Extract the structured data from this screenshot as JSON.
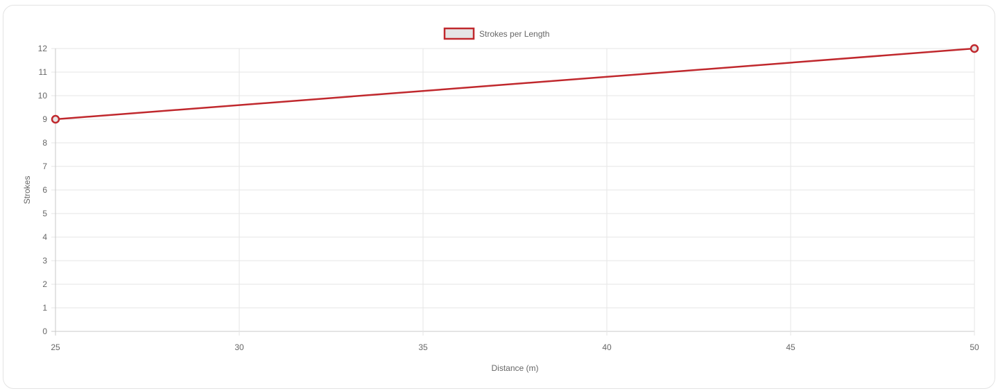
{
  "chart_data": {
    "type": "line",
    "x": [
      25,
      50
    ],
    "series": [
      {
        "name": "Strokes per Length",
        "values": [
          9,
          12
        ]
      }
    ],
    "xlabel": "Distance (m)",
    "ylabel": "Strokes",
    "xlim": [
      25,
      50
    ],
    "ylim": [
      0,
      12
    ],
    "x_ticks": [
      25,
      30,
      35,
      40,
      45,
      50
    ],
    "y_ticks": [
      0,
      1,
      2,
      3,
      4,
      5,
      6,
      7,
      8,
      9,
      10,
      11,
      12
    ],
    "grid": true,
    "legend_position": "top",
    "colors": {
      "line": "#c0282d",
      "legend_fill": "#e5e5e5",
      "grid": "#e6e6e6",
      "axis": "#c8c8c8",
      "text": "#666666"
    }
  }
}
